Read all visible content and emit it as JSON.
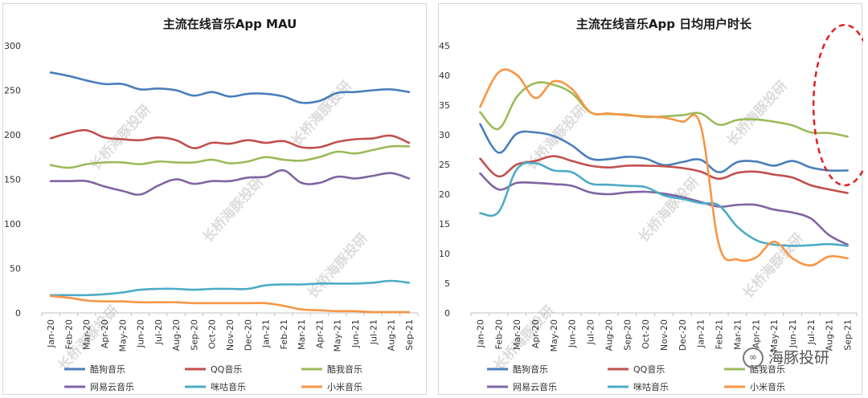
{
  "colors": {
    "kugou": "#4a7ebb",
    "qq": "#c0504d",
    "kuwo": "#9bbb59",
    "netease": "#8064a2",
    "migu": "#4bacc6",
    "xiaomi": "#f79646",
    "annotation": "#e02020"
  },
  "watermark_text": "长桥海豚投研",
  "brand_text": "海豚投研",
  "chart_data": [
    {
      "type": "line",
      "title": "主流在线音乐App MAU",
      "xlabel": "",
      "ylabel": "",
      "categories": [
        "Jan-20",
        "Feb-20",
        "Mar-20",
        "Apr-20",
        "May-20",
        "Jun-20",
        "Jul-20",
        "Aug-20",
        "Sep-20",
        "Oct-20",
        "Nov-20",
        "Dec-20",
        "Jan-21",
        "Feb-21",
        "Mar-21",
        "Apr-21",
        "May-21",
        "Jun-21",
        "Jul-21",
        "Aug-21",
        "Sep-21"
      ],
      "ylim": [
        0,
        300
      ],
      "yticks": [
        0,
        50,
        100,
        150,
        200,
        250,
        300
      ],
      "grid": false,
      "legend_position": "bottom",
      "series": [
        {
          "name": "酷狗音乐",
          "color_key": "kugou",
          "values": [
            270,
            266,
            261,
            257,
            257,
            251,
            252,
            250,
            244,
            248,
            243,
            246,
            246,
            243,
            236,
            238,
            247,
            248,
            250,
            251,
            248
          ]
        },
        {
          "name": "QQ音乐",
          "color_key": "qq",
          "values": [
            196,
            202,
            205,
            197,
            195,
            194,
            197,
            194,
            185,
            191,
            190,
            194,
            191,
            193,
            186,
            186,
            192,
            195,
            196,
            199,
            191
          ]
        },
        {
          "name": "酷我音乐",
          "color_key": "kuwo",
          "values": [
            166,
            163,
            167,
            169,
            169,
            167,
            170,
            169,
            169,
            172,
            168,
            170,
            175,
            172,
            171,
            175,
            181,
            179,
            183,
            187,
            187
          ]
        },
        {
          "name": "网易云音乐",
          "color_key": "netease",
          "values": [
            148,
            148,
            148,
            142,
            137,
            133,
            143,
            150,
            145,
            148,
            148,
            152,
            153,
            160,
            146,
            146,
            153,
            151,
            154,
            157,
            151
          ]
        },
        {
          "name": "咪咕音乐",
          "color_key": "migu",
          "values": [
            20,
            20,
            20,
            21,
            23,
            26,
            27,
            27,
            26,
            27,
            27,
            27,
            31,
            32,
            32,
            33,
            33,
            33,
            34,
            36,
            34
          ]
        },
        {
          "name": "小米音乐",
          "color_key": "xiaomi",
          "values": [
            19,
            17,
            14,
            13,
            13,
            12,
            12,
            12,
            11,
            11,
            11,
            11,
            11,
            8,
            4,
            3,
            2,
            2,
            1,
            1,
            1
          ]
        }
      ]
    },
    {
      "type": "line",
      "title": "主流在线音乐App 日均用户时长",
      "xlabel": "",
      "ylabel": "",
      "categories": [
        "Jan-20",
        "Feb-20",
        "Mar-20",
        "Apr-20",
        "May-20",
        "Jun-20",
        "Jul-20",
        "Aug-20",
        "Sep-20",
        "Oct-20",
        "Nov-20",
        "Dec-20",
        "Jan-21",
        "Feb-21",
        "Mar-21",
        "Apr-21",
        "May-21",
        "Jun-21",
        "Jul-21",
        "Aug-21",
        "Sep-21"
      ],
      "ylim": [
        0,
        45
      ],
      "yticks": [
        0,
        5,
        10,
        15,
        20,
        25,
        30,
        35,
        40,
        45
      ],
      "grid": false,
      "legend_position": "bottom",
      "annotation": "dashed red ellipse around Aug-21 to Sep-21 values",
      "series": [
        {
          "name": "酷狗音乐",
          "color_key": "kugou",
          "values": [
            31.8,
            27.0,
            30.2,
            30.4,
            29.8,
            28.2,
            26.0,
            25.9,
            26.3,
            26.0,
            24.9,
            25.4,
            25.8,
            23.7,
            25.4,
            25.5,
            24.8,
            25.6,
            24.5,
            24.0,
            24.0
          ]
        },
        {
          "name": "QQ音乐",
          "color_key": "qq",
          "values": [
            26.0,
            23.0,
            25.0,
            25.6,
            26.4,
            25.6,
            24.8,
            24.5,
            24.8,
            24.8,
            24.7,
            24.4,
            23.8,
            22.6,
            23.6,
            23.8,
            23.3,
            22.8,
            21.5,
            20.8,
            20.2
          ]
        },
        {
          "name": "酷我音乐",
          "color_key": "kuwo",
          "values": [
            33.8,
            31.0,
            36.4,
            38.7,
            38.4,
            37.0,
            33.8,
            33.5,
            33.4,
            33.0,
            33.1,
            33.3,
            33.6,
            31.7,
            32.5,
            32.6,
            32.2,
            31.6,
            30.4,
            30.3,
            29.7
          ]
        },
        {
          "name": "网易云音乐",
          "color_key": "netease",
          "values": [
            23.5,
            20.8,
            21.9,
            21.9,
            21.7,
            21.4,
            20.3,
            20.0,
            20.3,
            20.4,
            20.1,
            19.5,
            18.7,
            17.9,
            18.2,
            18.2,
            17.4,
            16.9,
            15.9,
            13.1,
            11.5
          ]
        },
        {
          "name": "咪咕音乐",
          "color_key": "migu",
          "values": [
            16.8,
            17.0,
            24.2,
            25.2,
            24.0,
            23.7,
            21.8,
            21.6,
            21.4,
            21.2,
            19.8,
            19.2,
            18.5,
            18.1,
            14.5,
            12.3,
            11.5,
            11.3,
            11.4,
            11.6,
            11.3
          ]
        },
        {
          "name": "小米音乐",
          "color_key": "xiaomi",
          "values": [
            34.7,
            40.5,
            40.1,
            36.2,
            39.0,
            37.7,
            33.8,
            33.6,
            33.3,
            33.1,
            32.9,
            32.2,
            31.6,
            11.5,
            9.0,
            9.3,
            12.0,
            9.2,
            8.0,
            9.5,
            9.2
          ]
        }
      ]
    }
  ]
}
